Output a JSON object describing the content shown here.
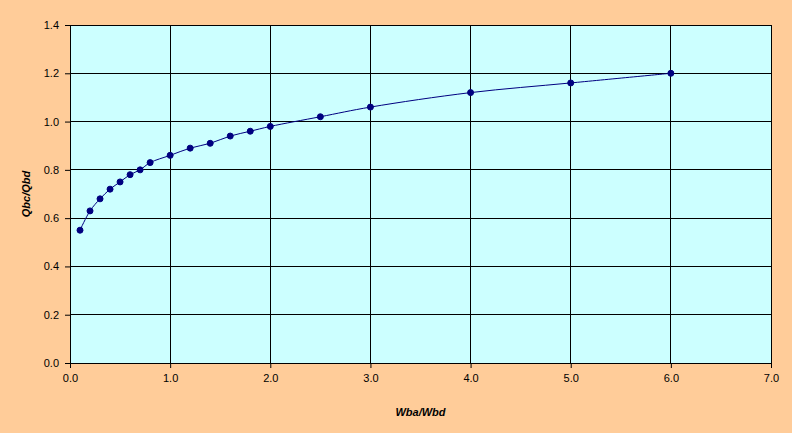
{
  "chart_data": {
    "type": "line",
    "x_label": "Wba/Wbd",
    "y_label": "Qbc/Qbd",
    "x": [
      0.1,
      0.2,
      0.3,
      0.4,
      0.5,
      0.6,
      0.7,
      0.8,
      1.0,
      1.2,
      1.4,
      1.6,
      1.8,
      2.0,
      2.5,
      3.0,
      4.0,
      5.0,
      6.0
    ],
    "values": [
      0.55,
      0.63,
      0.68,
      0.72,
      0.75,
      0.78,
      0.8,
      0.83,
      0.86,
      0.89,
      0.91,
      0.94,
      0.96,
      0.98,
      1.02,
      1.06,
      1.12,
      1.16,
      1.2
    ],
    "color": "#000080",
    "marker": "circle",
    "line_style": "solid",
    "xlim": [
      0,
      7
    ],
    "xticks": [
      {
        "value": 0,
        "label": "0.0"
      },
      {
        "value": 1,
        "label": "1.0"
      },
      {
        "value": 2,
        "label": "2.0"
      },
      {
        "value": 3,
        "label": "3.0"
      },
      {
        "value": 4,
        "label": "4.0"
      },
      {
        "value": 5,
        "label": "5.0"
      },
      {
        "value": 6,
        "label": "6.0"
      },
      {
        "value": 7,
        "label": "7.0"
      }
    ],
    "ylim": [
      0,
      1.4
    ],
    "yticks": [
      {
        "value": 0,
        "label": "0.0"
      },
      0.2,
      0.4,
      0.6,
      0.8,
      {
        "value": 1,
        "label": "1.0"
      },
      1.2,
      1.4
    ],
    "grid": true
  }
}
